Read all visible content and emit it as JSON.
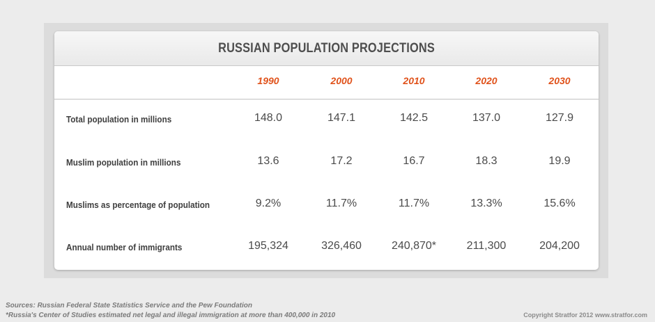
{
  "table": {
    "title": "RUSSIAN POPULATION PROJECTIONS",
    "years": [
      "1990",
      "2000",
      "2010",
      "2020",
      "2030"
    ],
    "rows": [
      {
        "label": "Total population in millions",
        "values": [
          "148.0",
          "147.1",
          "142.5",
          "137.0",
          "127.9"
        ]
      },
      {
        "label": "Muslim population in millions",
        "values": [
          "13.6",
          "17.2",
          "16.7",
          "18.3",
          "19.9"
        ]
      },
      {
        "label": "Muslims as percentage of population",
        "values": [
          "9.2%",
          "11.7%",
          "11.7%",
          "13.3%",
          "15.6%"
        ]
      },
      {
        "label": "Annual number of immigrants",
        "values": [
          "195,324",
          "326,460",
          "240,870*",
          "211,300",
          "204,200"
        ]
      }
    ]
  },
  "footer": {
    "sources": "Sources: Russian Federal State Statistics Service and the Pew Foundation",
    "note": "*Russia's Center of Studies estimated net legal and illegal immigration at more than 400,000 in 2010",
    "copyright": "Copyright Stratfor 2012  www.stratfor.com"
  },
  "colors": {
    "year_accent": "#e0531c",
    "label_text": "#3f3f3f",
    "value_text": "#4a4a4a"
  }
}
